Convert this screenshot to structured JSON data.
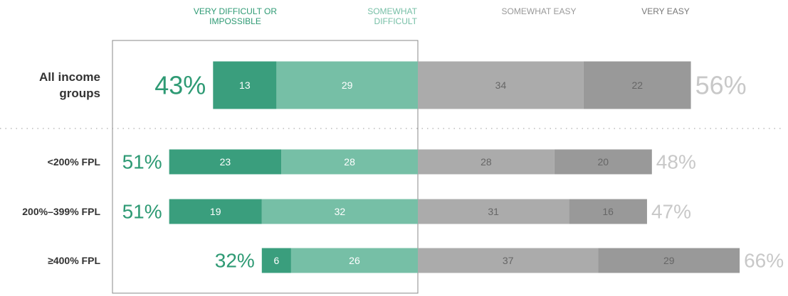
{
  "chart_data": {
    "type": "diverging_bar",
    "categories": [
      "All income groups",
      "<200% FPL",
      "200%–399% FPL",
      "≥400% FPL"
    ],
    "series": [
      {
        "name": "VERY DIFFICULT OR IMPOSSIBLE",
        "color": "#3a9e7d",
        "side": "left",
        "values": [
          13,
          23,
          19,
          6
        ]
      },
      {
        "name": "SOMEWHAT DIFFICULT",
        "color": "#76bfa6",
        "side": "left",
        "values": [
          29,
          28,
          32,
          26
        ]
      },
      {
        "name": "SOMEWHAT EASY",
        "color": "#ababab",
        "side": "right",
        "values": [
          34,
          28,
          31,
          37
        ]
      },
      {
        "name": "VERY EASY",
        "color": "#999999",
        "side": "right",
        "values": [
          22,
          20,
          16,
          29
        ]
      }
    ],
    "difficult_totals": {
      "color": "#2e9a74",
      "values": [
        43,
        51,
        51,
        32
      ],
      "value_labels": [
        "43%",
        "51%",
        "51%",
        "32%"
      ]
    },
    "easy_totals": {
      "color": "#c8c8c8",
      "values": [
        56,
        48,
        47,
        66
      ],
      "value_labels": [
        "56%",
        "48%",
        "47%",
        "66%"
      ]
    }
  }
}
